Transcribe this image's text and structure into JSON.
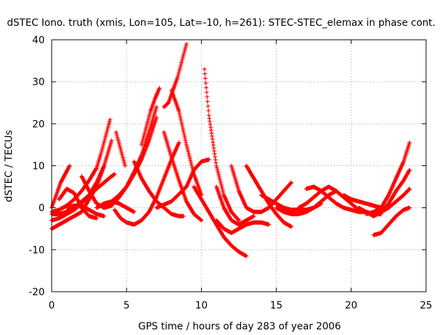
{
  "chart_data": {
    "type": "scatter",
    "title": "dSTEC Iono. truth (xmis, Lon=105, Lat=-10, h=261): STEC-STEC_elemax in phase cont.",
    "xlabel": "GPS time / hours of day 283 of year 2006",
    "ylabel": "dSTEC  / TECUs",
    "xlim": [
      0,
      25
    ],
    "ylim": [
      -20,
      40
    ],
    "xticks": [
      "0",
      "5",
      "10",
      "15",
      "20",
      "25"
    ],
    "yticks": [
      "-20",
      "-10",
      "0",
      "10",
      "20",
      "30",
      "40"
    ],
    "grid": true,
    "marker": "+",
    "color": "#ff0000",
    "series": [
      {
        "x": [
          0.0,
          0.3,
          0.6,
          0.9,
          1.2
        ],
        "y": [
          0,
          3,
          6,
          8,
          10
        ]
      },
      {
        "x": [
          0.0,
          0.5,
          1.0,
          1.5,
          2.0,
          2.5,
          3.0,
          3.3,
          3.6,
          3.9
        ],
        "y": [
          -1,
          -0.5,
          0.5,
          2,
          4,
          6.5,
          9.5,
          13,
          17,
          21
        ]
      },
      {
        "x": [
          0.0,
          0.5,
          1.0,
          1.5,
          2.0,
          2.5,
          3.0,
          3.5,
          4.0
        ],
        "y": [
          -5,
          -4,
          -3,
          -2,
          -1,
          2,
          5,
          10,
          16
        ]
      },
      {
        "x": [
          0.0,
          0.5,
          1.0,
          1.5,
          2.0,
          2.5,
          3.0,
          3.5
        ],
        "y": [
          -3,
          -2.5,
          -1.5,
          -0.5,
          1,
          3,
          6,
          10
        ]
      },
      {
        "x": [
          0.0,
          0.5,
          1.0,
          1.5,
          2.0,
          2.5,
          3.0,
          3.5,
          4.0,
          4.2
        ],
        "y": [
          -1.5,
          -1.5,
          -1,
          0,
          1.5,
          3,
          4.5,
          6,
          7.5,
          8
        ]
      },
      {
        "x": [
          0.5,
          1.0,
          1.5,
          2.0,
          2.5,
          3.0
        ],
        "y": [
          2,
          4.5,
          3.5,
          0,
          -2,
          -2.5
        ]
      },
      {
        "x": [
          1.0,
          1.5,
          2.0,
          2.5,
          3.0,
          3.5
        ],
        "y": [
          0,
          0.5,
          0.5,
          -0.5,
          -1.5,
          -2
        ]
      },
      {
        "x": [
          2.0,
          2.5,
          3.0,
          3.5,
          4.0,
          4.5,
          5.0,
          5.5,
          6.0,
          6.5,
          7.0
        ],
        "y": [
          7.5,
          4,
          1,
          0,
          0.5,
          2.5,
          5,
          8.5,
          12.5,
          18,
          24
        ]
      },
      {
        "x": [
          3.0,
          3.5,
          4.0,
          4.5,
          5.0,
          5.5
        ],
        "y": [
          0,
          1,
          1.5,
          1,
          0,
          -1
        ]
      },
      {
        "x": [
          3.5,
          4.0,
          4.5,
          5.0,
          5.5,
          6.0,
          6.5,
          7.0
        ],
        "y": [
          0,
          1.5,
          3,
          5,
          8,
          11.5,
          16,
          21.5
        ]
      },
      {
        "x": [
          4.2,
          4.6,
          5.0,
          5.5,
          6.0,
          6.5,
          7.0,
          7.5,
          8.0,
          8.5
        ],
        "y": [
          -0.5,
          -2.5,
          -3.5,
          -4,
          -3,
          -1,
          2.5,
          7,
          11.5,
          15.5
        ]
      },
      {
        "x": [
          4.3,
          4.6,
          4.9
        ],
        "y": [
          18,
          14,
          10
        ]
      },
      {
        "x": [
          5.5,
          6.0,
          6.5,
          7.0,
          7.5,
          8.0,
          8.5,
          8.8
        ],
        "y": [
          11,
          7,
          4,
          1.5,
          0,
          -1.5,
          -2,
          -2
        ]
      },
      {
        "x": [
          6.0,
          6.3,
          6.6,
          6.9,
          7.2
        ],
        "y": [
          15,
          19,
          23,
          26,
          28.5
        ]
      },
      {
        "x": [
          7.5,
          8.0,
          8.5,
          9.0,
          9.5,
          10.0
        ],
        "y": [
          18,
          12,
          6.5,
          1.5,
          -1.5,
          -3
        ]
      },
      {
        "x": [
          7.5,
          7.8,
          8.1,
          8.4,
          8.7,
          9.0
        ],
        "y": [
          24,
          25,
          28,
          31,
          35,
          39
        ]
      },
      {
        "x": [
          8.0,
          8.5,
          9.0,
          9.5,
          10.0
        ],
        "y": [
          28,
          23,
          15,
          8,
          3
        ]
      },
      {
        "x": [
          7.0,
          8.0,
          9.0,
          9.5,
          10.0,
          10.5
        ],
        "y": [
          0,
          1.5,
          5,
          9,
          11,
          11.5
        ]
      },
      {
        "x": [
          9.5,
          10.0,
          10.5,
          11.0,
          11.5,
          12.0,
          12.5,
          13.0
        ],
        "y": [
          5,
          2,
          -1,
          -4,
          -7,
          -9,
          -10.5,
          -11.5
        ]
      },
      {
        "x": [
          10.2,
          10.5,
          11.0,
          11.5,
          12.0,
          12.5
        ],
        "y": [
          33,
          22,
          10,
          3,
          -1,
          -3
        ]
      },
      {
        "x": [
          11.0,
          11.5,
          12.0,
          12.5,
          13.0,
          13.5,
          14.0,
          14.5
        ],
        "y": [
          -3,
          -5,
          -6,
          -5,
          -4,
          -3.5,
          -3.5,
          -4
        ]
      },
      {
        "x": [
          11.0,
          11.5,
          12.0,
          12.5,
          13.0,
          13.5
        ],
        "y": [
          5,
          0,
          -3,
          -4,
          -3,
          -2
        ]
      },
      {
        "x": [
          12.0,
          12.5,
          13.0,
          13.5,
          14.0,
          14.5,
          15.0,
          15.5,
          16.0
        ],
        "y": [
          10,
          4,
          0,
          -1,
          -1,
          0,
          2,
          4,
          6
        ]
      },
      {
        "x": [
          13.0,
          13.5,
          14.0,
          14.5,
          15.0,
          15.5,
          16.0
        ],
        "y": [
          10,
          7,
          4,
          1,
          -1.5,
          -3.5,
          -4.5
        ]
      },
      {
        "x": [
          14.0,
          14.5,
          15.0,
          15.5,
          16.0,
          16.5,
          17.0,
          17.5,
          18.0
        ],
        "y": [
          3,
          2,
          1,
          0,
          -0.5,
          -0.5,
          -0.5,
          0,
          1
        ]
      },
      {
        "x": [
          15.0,
          15.5,
          16.0,
          16.5,
          17.0,
          17.5,
          18.0,
          18.5,
          19.0
        ],
        "y": [
          0,
          -1,
          -1.5,
          -1.5,
          -1,
          0,
          1.5,
          3,
          4
        ]
      },
      {
        "x": [
          16.5,
          17.0,
          17.5,
          18.0,
          18.5,
          19.0,
          19.5,
          20.0,
          20.5
        ],
        "y": [
          0,
          1,
          2.5,
          4,
          5,
          4,
          2.5,
          1,
          -0.5
        ]
      },
      {
        "x": [
          17.0,
          17.5,
          18.0,
          18.5,
          19.0,
          19.5,
          20.0,
          20.5,
          21.0,
          21.5,
          22.0
        ],
        "y": [
          4.5,
          5,
          4,
          2.5,
          1,
          0,
          -0.5,
          -1,
          -1,
          -1.5,
          -1.5
        ]
      },
      {
        "x": [
          19.5,
          20.0,
          20.5,
          21.0,
          21.5,
          22.0
        ],
        "y": [
          3,
          2,
          1.5,
          1,
          0.5,
          0
        ]
      },
      {
        "x": [
          21.5,
          22.0,
          22.5,
          23.0,
          23.5,
          23.9
        ],
        "y": [
          -6.5,
          -6,
          -4,
          -2,
          -0.5,
          0
        ]
      },
      {
        "x": [
          21.0,
          21.5,
          22.0,
          22.5,
          23.0,
          23.5,
          23.9
        ],
        "y": [
          -1.5,
          -1,
          0,
          3,
          7,
          11,
          15.5
        ]
      },
      {
        "x": [
          20.5,
          21.0,
          21.5,
          22.0,
          22.5,
          23.0,
          23.5,
          23.9
        ],
        "y": [
          0,
          -1,
          -2,
          -1,
          1,
          4,
          6.5,
          9
        ]
      },
      {
        "x": [
          21.0,
          21.5,
          22.0,
          22.5,
          23.0,
          23.5,
          23.9
        ],
        "y": [
          -1,
          -1.5,
          -1,
          0,
          1.5,
          3,
          4.5
        ]
      }
    ]
  }
}
